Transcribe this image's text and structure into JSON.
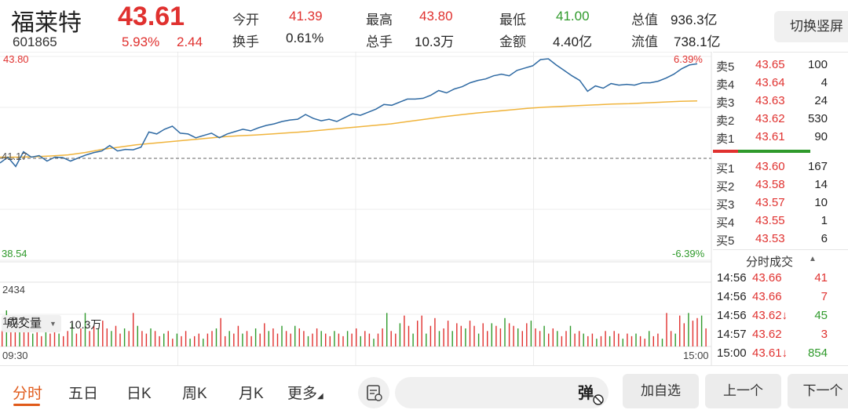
{
  "header": {
    "name": "福莱特",
    "code": "601865",
    "price": "43.61",
    "change_pct": "5.93%",
    "change": "2.44",
    "stats": [
      {
        "label": "今开",
        "value": "41.39",
        "color": "red"
      },
      {
        "label": "最高",
        "value": "43.80",
        "color": "red"
      },
      {
        "label": "最低",
        "value": "41.00",
        "color": "green"
      },
      {
        "label": "总值",
        "value": "936.3亿",
        "color": "black"
      },
      {
        "label": "换手",
        "value": "0.61%",
        "color": "black"
      },
      {
        "label": "总手",
        "value": "10.3万",
        "color": "black"
      },
      {
        "label": "金额",
        "value": "4.40亿",
        "color": "black"
      },
      {
        "label": "流值",
        "value": "738.1亿",
        "color": "black"
      }
    ],
    "switch_label": "切换竖屏"
  },
  "chart": {
    "price_top": "43.80",
    "price_bottom": "38.54",
    "prev_close": "41.17",
    "pct_top": "6.39%",
    "pct_bottom": "-6.39%",
    "vol_selector": "成交量",
    "vol_total": "10.3万",
    "vol_max": "2434",
    "vol_mid": "1217",
    "time_start": "09:30",
    "time_end": "15:00"
  },
  "chart_data": {
    "type": "line",
    "y_range": [
      38.54,
      43.8
    ],
    "prev_close": 41.17,
    "price_series": [
      41.05,
      41.2,
      40.96,
      41.34,
      41.2,
      41.24,
      41.1,
      41.2,
      41.19,
      41.1,
      41.18,
      41.26,
      41.32,
      41.36,
      41.5,
      41.36,
      41.4,
      41.39,
      41.46,
      41.85,
      41.8,
      41.92,
      42.0,
      41.82,
      41.8,
      41.7,
      41.76,
      41.82,
      41.7,
      41.8,
      41.86,
      41.92,
      41.88,
      41.96,
      42.02,
      42.06,
      42.12,
      42.16,
      42.18,
      42.3,
      42.2,
      42.14,
      42.18,
      42.12,
      42.22,
      42.32,
      42.28,
      42.36,
      42.44,
      42.56,
      42.54,
      42.62,
      42.7,
      42.7,
      42.72,
      42.8,
      42.92,
      42.86,
      42.96,
      43.02,
      43.12,
      43.18,
      43.22,
      43.3,
      43.34,
      43.3,
      43.44,
      43.5,
      43.56,
      43.72,
      43.74,
      43.58,
      43.44,
      43.3,
      43.18,
      42.9,
      43.04,
      42.98,
      43.1,
      43.06,
      43.08,
      43.06,
      43.12,
      43.12,
      43.16,
      43.24,
      43.34,
      43.48,
      43.58,
      43.61
    ],
    "avg_series": [
      41.2,
      41.2,
      41.21,
      41.23,
      41.26,
      41.32,
      41.4,
      41.46,
      41.52,
      41.56,
      41.6,
      41.64,
      41.68,
      41.72,
      41.75,
      41.77,
      41.8,
      41.83,
      41.86,
      41.9,
      41.94,
      41.98,
      42.02,
      42.06,
      42.12,
      42.18,
      42.24,
      42.29,
      42.34,
      42.38,
      42.42,
      42.46,
      42.49,
      42.51,
      42.53,
      42.55,
      42.57,
      42.58,
      42.6,
      42.62,
      42.64,
      42.65
    ],
    "volume_series": [
      900,
      1400,
      1000,
      700,
      1100,
      600,
      800,
      500,
      700,
      400,
      600,
      500,
      700,
      500,
      400,
      600,
      900,
      500,
      700,
      1300,
      600,
      800,
      700,
      1000,
      700,
      600,
      800,
      500,
      700,
      600,
      1300,
      800,
      600,
      500,
      700,
      600,
      400,
      500,
      600,
      300,
      500,
      400,
      600,
      300,
      400,
      500,
      300,
      500,
      600,
      700,
      1100,
      400,
      600,
      500,
      800,
      500,
      600,
      400,
      700,
      500,
      900,
      600,
      700,
      500,
      800,
      600,
      500,
      800,
      700,
      600,
      400,
      500,
      700,
      600,
      500,
      400,
      600,
      500,
      400,
      600,
      500,
      700,
      400,
      600,
      500,
      300,
      500,
      700,
      1300,
      600,
      500,
      900,
      1200,
      800,
      500,
      1000,
      1200,
      500,
      800,
      1100,
      600,
      700,
      1000,
      600,
      900,
      800,
      700,
      1000,
      800,
      500,
      900,
      600,
      900,
      800,
      700,
      1100,
      900,
      800,
      700,
      600,
      900,
      1000,
      700,
      600,
      800,
      500,
      700,
      600,
      400,
      600,
      800,
      500,
      600,
      500,
      400,
      500,
      300,
      400,
      600,
      400,
      600,
      500,
      300,
      500,
      400,
      500,
      400,
      300,
      600,
      400,
      500,
      300,
      1300,
      600,
      500,
      1200,
      900,
      1300,
      1000,
      1100,
      1200,
      700
    ],
    "volume_max": 2434
  },
  "orderbook": {
    "asks": [
      {
        "label": "卖5",
        "price": "43.65",
        "vol": "100"
      },
      {
        "label": "卖4",
        "price": "43.64",
        "vol": "4"
      },
      {
        "label": "卖3",
        "price": "43.63",
        "vol": "24"
      },
      {
        "label": "卖2",
        "price": "43.62",
        "vol": "530"
      },
      {
        "label": "卖1",
        "price": "43.61",
        "vol": "90"
      }
    ],
    "bids": [
      {
        "label": "买1",
        "price": "43.60",
        "vol": "167"
      },
      {
        "label": "买2",
        "price": "43.58",
        "vol": "14"
      },
      {
        "label": "买3",
        "price": "43.57",
        "vol": "10"
      },
      {
        "label": "买4",
        "price": "43.55",
        "vol": "1"
      },
      {
        "label": "买5",
        "price": "43.53",
        "vol": "6"
      }
    ]
  },
  "time_sales": {
    "title": "分时成交",
    "rows": [
      {
        "time": "14:56",
        "price": "43.66",
        "vol": "41",
        "price_color": "red",
        "vol_color": "red",
        "arrow": ""
      },
      {
        "time": "14:56",
        "price": "43.66",
        "vol": "7",
        "price_color": "red",
        "vol_color": "red",
        "arrow": ""
      },
      {
        "time": "14:56",
        "price": "43.62↓",
        "vol": "45",
        "price_color": "red",
        "vol_color": "green",
        "arrow": "down"
      },
      {
        "time": "14:57",
        "price": "43.62",
        "vol": "3",
        "price_color": "red",
        "vol_color": "red",
        "arrow": ""
      },
      {
        "time": "15:00",
        "price": "43.61↓",
        "vol": "854",
        "price_color": "red",
        "vol_color": "green",
        "arrow": "down"
      }
    ]
  },
  "bottom": {
    "tabs": [
      "分时",
      "五日",
      "日K",
      "周K",
      "月K",
      "更多"
    ],
    "danmu_label": "弹",
    "buttons": [
      "加自选",
      "上一个",
      "下一个"
    ]
  },
  "colors": {
    "up": "#e0312f",
    "down": "#2f9a2b",
    "price_line": "#2f6aa3",
    "avg_line": "#f0b43c",
    "accent": "#e05a1a"
  }
}
